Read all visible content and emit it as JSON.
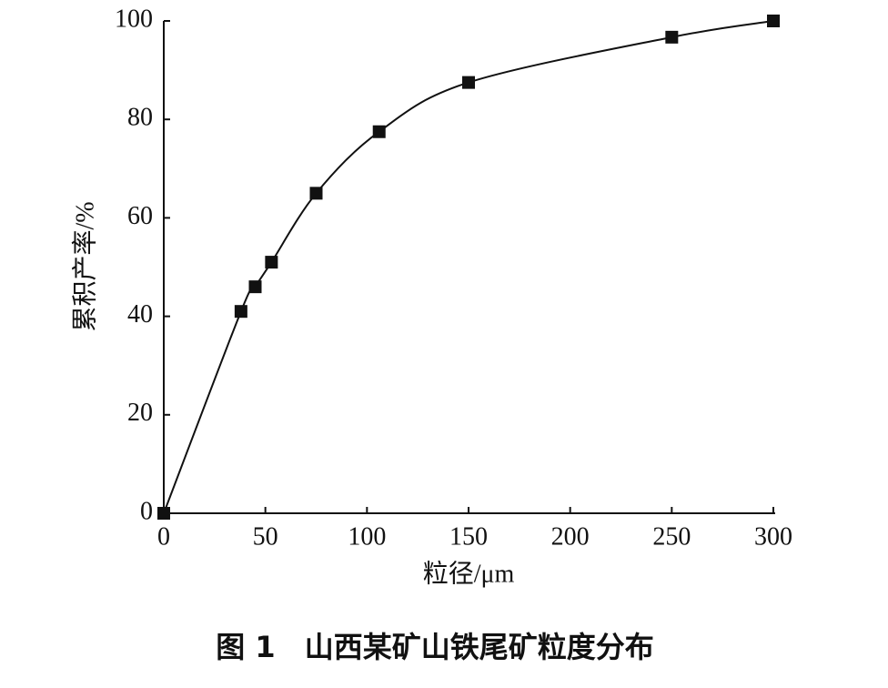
{
  "chart_data": {
    "type": "line",
    "caption": "图 1　山西某矿山铁尾矿粒度分布",
    "x_label": "粒径/μm",
    "y_label": "累积产率/%",
    "x": [
      0,
      38,
      45,
      53,
      75,
      106,
      150,
      250,
      300
    ],
    "series": [
      {
        "color": "#111111",
        "values": [
          0,
          41,
          46,
          51,
          65,
          77.5,
          87.5,
          96.7,
          100
        ]
      }
    ],
    "marker": "square",
    "xlim": [
      0,
      300
    ],
    "xticks": [
      0,
      50,
      100,
      150,
      200,
      250,
      300
    ],
    "ylim": [
      0,
      100
    ],
    "yticks": [
      0,
      20,
      40,
      60,
      80,
      100
    ]
  }
}
